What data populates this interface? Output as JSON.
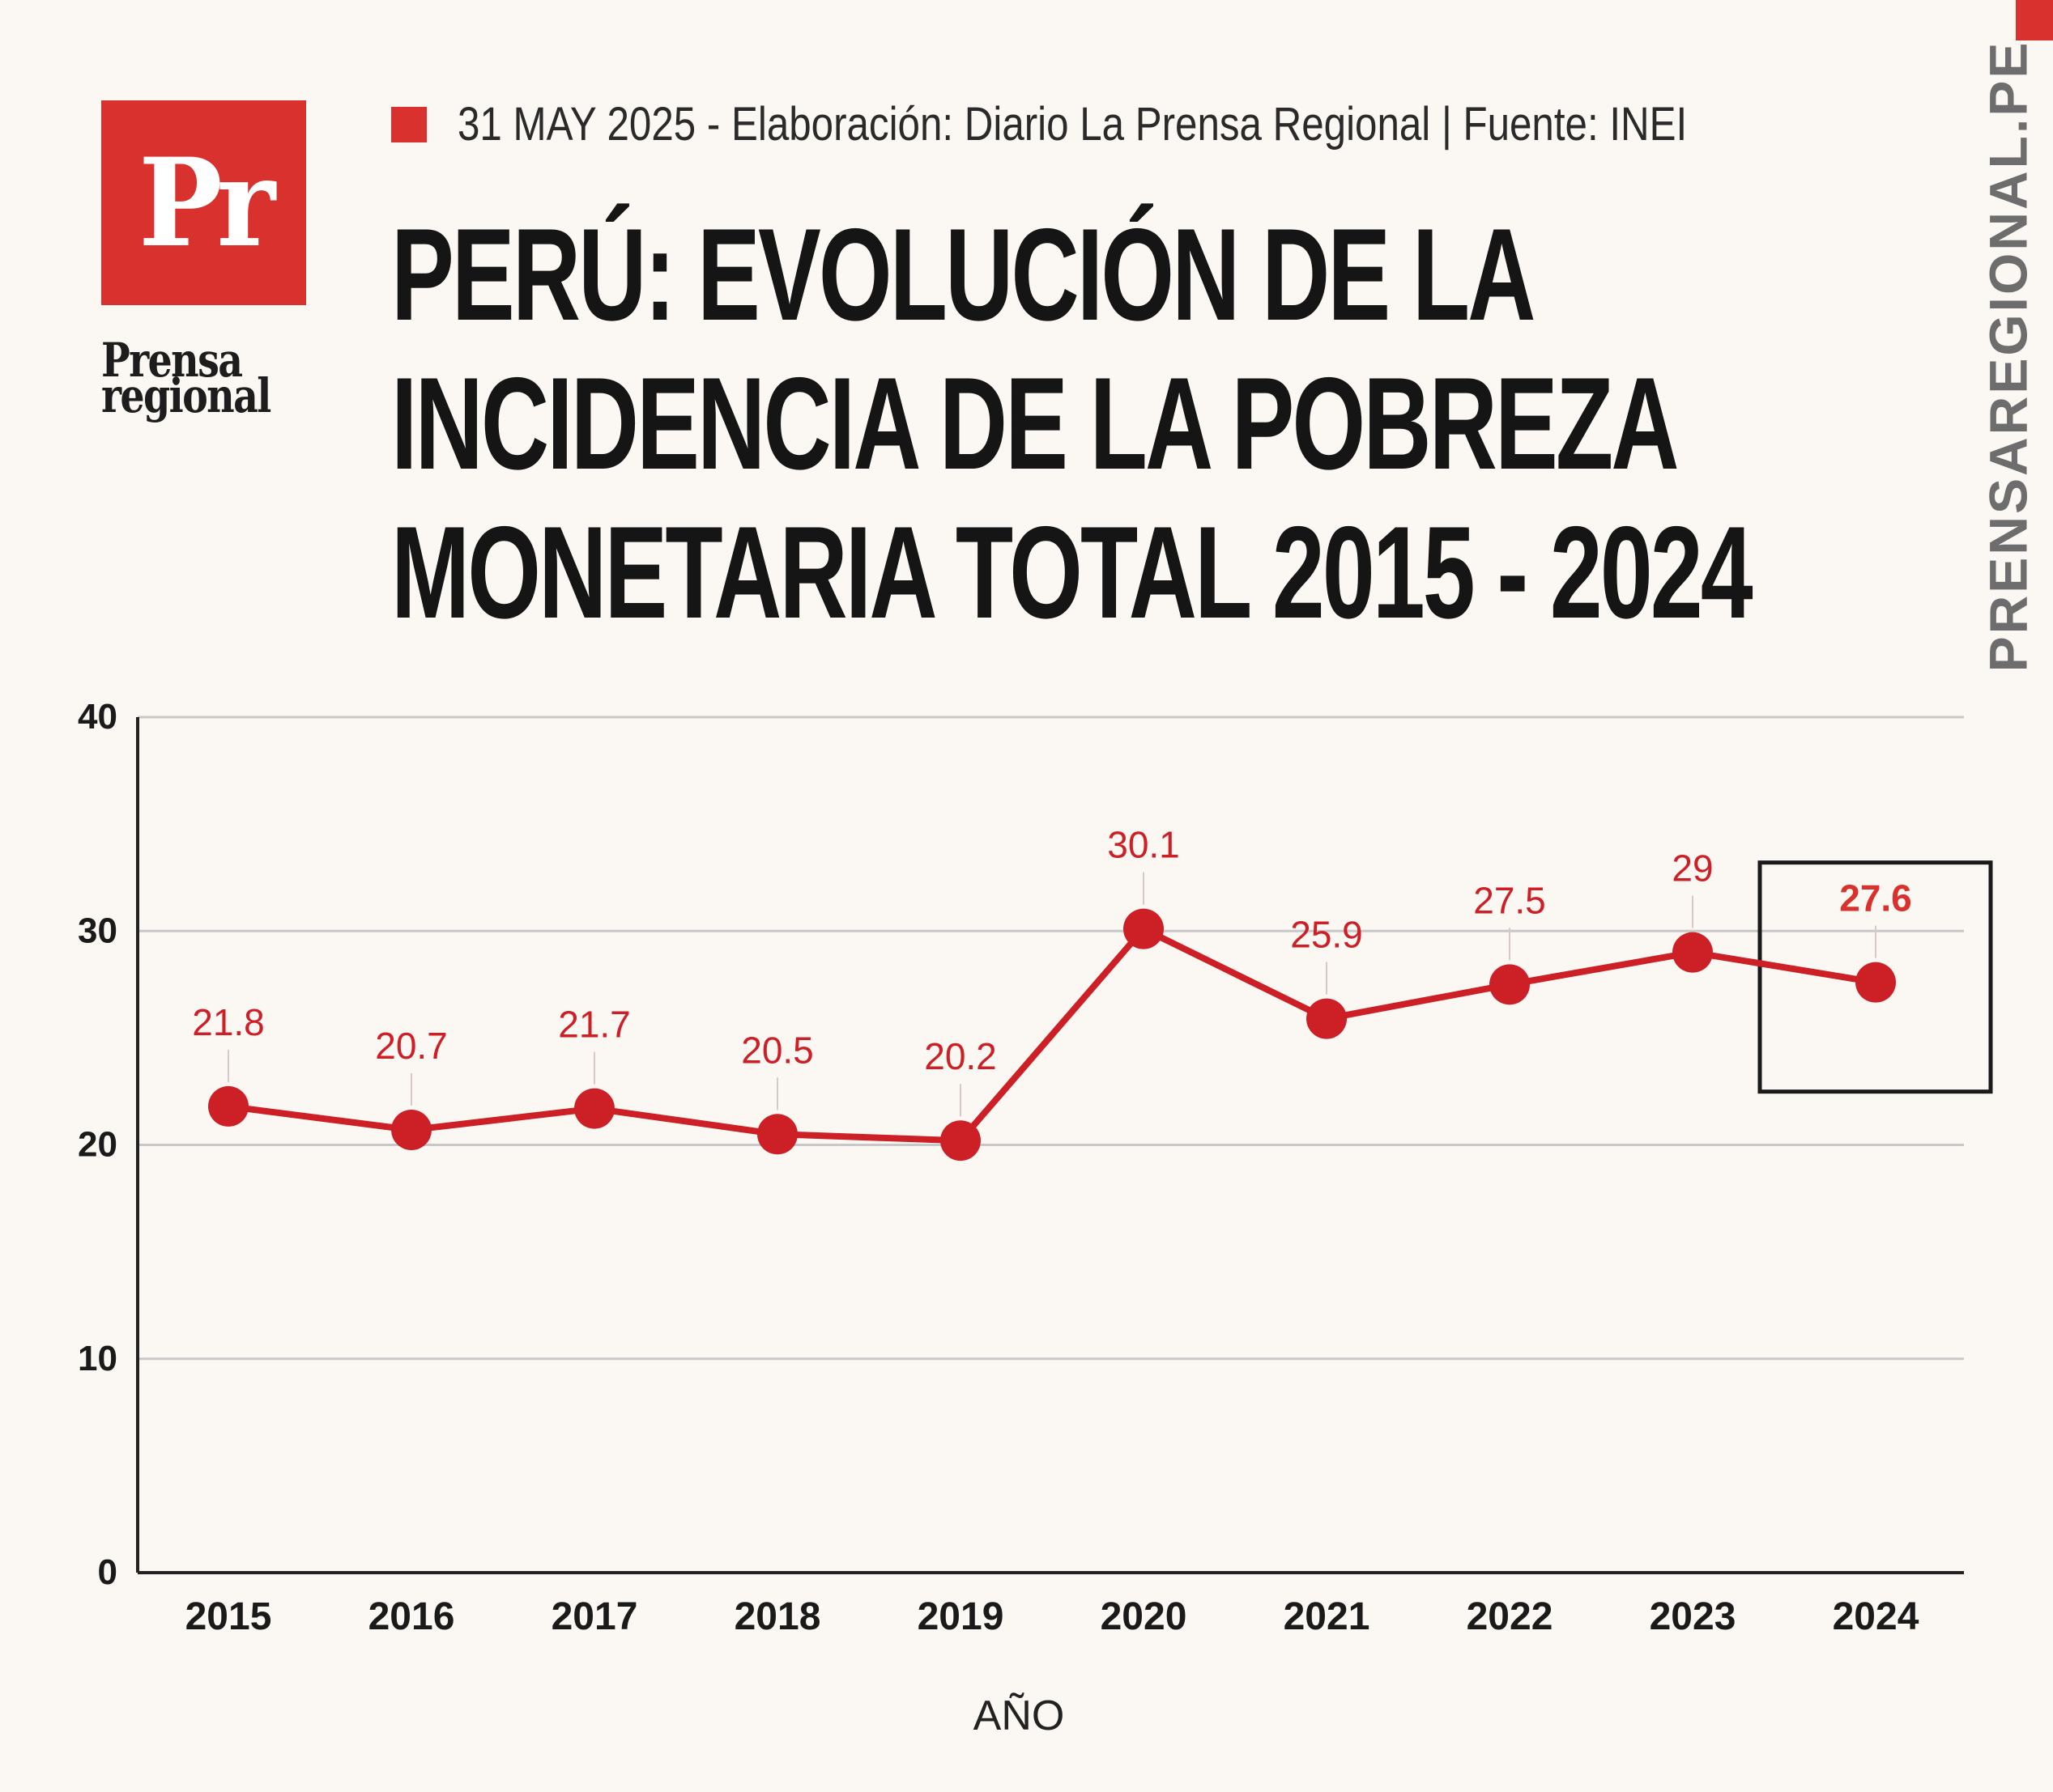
{
  "brand": {
    "logo_mark": "Pr",
    "logo_word_1": "Prensa",
    "logo_word_2": "regional",
    "side_url": "PRENSAREGIONAL.PE",
    "accent": "#d9322e"
  },
  "header": {
    "meta": "31 MAY 2025 -  Elaboración: Diario La Prensa Regional | Fuente: INEI",
    "title_lines": [
      "PERÚ: EVOLUCIÓN DE LA",
      "INCIDENCIA DE LA POBREZA",
      "MONETARIA TOTAL 2015 - 2024"
    ]
  },
  "chart_data": {
    "type": "line",
    "title": "PERÚ: EVOLUCIÓN DE LA INCIDENCIA DE LA POBREZA MONETARIA TOTAL 2015 - 2024",
    "x": [
      "2015",
      "2016",
      "2017",
      "2018",
      "2019",
      "2020",
      "2021",
      "2022",
      "2023",
      "2024"
    ],
    "series": [
      {
        "values": [
          21.8,
          20.7,
          21.7,
          20.5,
          20.2,
          30.1,
          25.9,
          27.5,
          29,
          27.6
        ],
        "color": "#cc1f26"
      }
    ],
    "data_labels": [
      "21.8",
      "20.7",
      "21.7",
      "20.5",
      "20.2",
      "30.1",
      "25.9",
      "27.5",
      "29",
      "27.6"
    ],
    "xlabel": "AÑO",
    "ylabel": "",
    "ylim": [
      0,
      40
    ],
    "yticks": [
      "0",
      "10",
      "20",
      "30",
      "40"
    ],
    "grid": true,
    "highlight_label": "27.6"
  }
}
